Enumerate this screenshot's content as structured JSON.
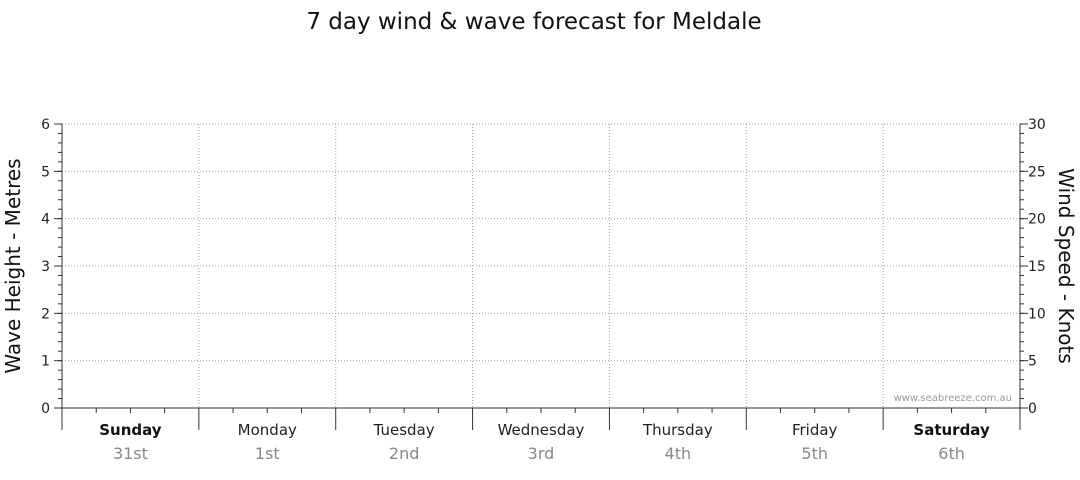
{
  "chart_data": {
    "type": "line",
    "title": "7 day wind & wave forecast for Meldale",
    "ylabel_left": "Wave Height - Metres",
    "ylabel_right": "Wind Speed - Knots",
    "ylim_left": [
      0,
      6
    ],
    "ylim_right": [
      0,
      30
    ],
    "yticks_left": [
      "0",
      "1",
      "2",
      "3",
      "4",
      "5",
      "6"
    ],
    "yticks_right": [
      "0",
      "5",
      "10",
      "15",
      "20",
      "25",
      "30"
    ],
    "grid": true,
    "days": [
      {
        "name": "Sunday",
        "date": "31st",
        "bold": true
      },
      {
        "name": "Monday",
        "date": "1st",
        "bold": false
      },
      {
        "name": "Tuesday",
        "date": "2nd",
        "bold": false
      },
      {
        "name": "Wednesday",
        "date": "3rd",
        "bold": false
      },
      {
        "name": "Thursday",
        "date": "4th",
        "bold": false
      },
      {
        "name": "Friday",
        "date": "5th",
        "bold": false
      },
      {
        "name": "Saturday",
        "date": "6th",
        "bold": true
      }
    ],
    "series": []
  },
  "watermark": "www.seabreeze.com.au",
  "colors": {
    "grid": "#a0a0a0",
    "axis": "#333333",
    "text": "#111111",
    "date_text": "#888888"
  }
}
